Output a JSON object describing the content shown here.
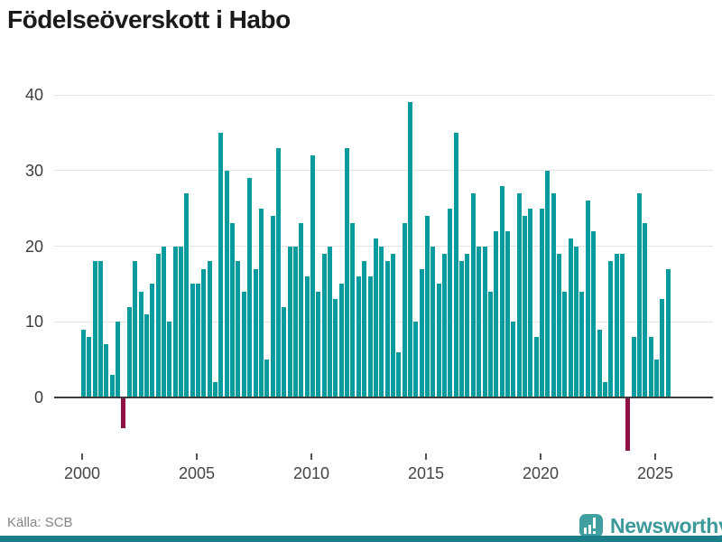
{
  "header": {
    "title": "Födelseöverskott i Habo"
  },
  "footer": {
    "source": "Källa: SCB",
    "brand": "Newsworthy"
  },
  "chart_data": {
    "type": "bar",
    "title": "Födelseöverskott i Habo",
    "xlabel": "",
    "ylabel": "",
    "period": "quarterly",
    "x_range": [
      "2000 Q1",
      "2025 Q3"
    ],
    "ylim": [
      -8,
      42
    ],
    "y_ticks": [
      0,
      10,
      20,
      30,
      40
    ],
    "x_ticks": [
      2000,
      2005,
      2010,
      2015,
      2020,
      2025
    ],
    "grid": true,
    "legend": "none",
    "colors": {
      "positive": "#0a9b9e",
      "negative": "#8e1245"
    },
    "series": [
      {
        "year": 2000,
        "values": [
          9,
          8,
          18,
          18
        ]
      },
      {
        "year": 2001,
        "values": [
          7,
          3,
          10,
          -4
        ]
      },
      {
        "year": 2002,
        "values": [
          12,
          18,
          14,
          11
        ]
      },
      {
        "year": 2003,
        "values": [
          15,
          19,
          20,
          10
        ]
      },
      {
        "year": 2004,
        "values": [
          20,
          20,
          27,
          15
        ]
      },
      {
        "year": 2005,
        "values": [
          15,
          17,
          18,
          2
        ]
      },
      {
        "year": 2006,
        "values": [
          35,
          30,
          23,
          18
        ]
      },
      {
        "year": 2007,
        "values": [
          14,
          29,
          17,
          25
        ]
      },
      {
        "year": 2008,
        "values": [
          5,
          24,
          33,
          12
        ]
      },
      {
        "year": 2009,
        "values": [
          20,
          20,
          23,
          16
        ]
      },
      {
        "year": 2010,
        "values": [
          32,
          14,
          19,
          20
        ]
      },
      {
        "year": 2011,
        "values": [
          13,
          15,
          33,
          23
        ]
      },
      {
        "year": 2012,
        "values": [
          16,
          18,
          16,
          21
        ]
      },
      {
        "year": 2013,
        "values": [
          20,
          18,
          19,
          6
        ]
      },
      {
        "year": 2014,
        "values": [
          23,
          39,
          10,
          17
        ]
      },
      {
        "year": 2015,
        "values": [
          24,
          20,
          15,
          19
        ]
      },
      {
        "year": 2016,
        "values": [
          25,
          35,
          18,
          19
        ]
      },
      {
        "year": 2017,
        "values": [
          27,
          20,
          20,
          14
        ]
      },
      {
        "year": 2018,
        "values": [
          22,
          28,
          22,
          10
        ]
      },
      {
        "year": 2019,
        "values": [
          27,
          24,
          25,
          8
        ]
      },
      {
        "year": 2020,
        "values": [
          25,
          30,
          27,
          19
        ]
      },
      {
        "year": 2021,
        "values": [
          14,
          21,
          20,
          14
        ]
      },
      {
        "year": 2022,
        "values": [
          26,
          22,
          9,
          2
        ]
      },
      {
        "year": 2023,
        "values": [
          18,
          19,
          19,
          -7
        ]
      },
      {
        "year": 2024,
        "values": [
          8,
          27,
          23,
          8
        ]
      },
      {
        "year": 2025,
        "values": [
          5,
          13,
          17
        ]
      }
    ]
  }
}
